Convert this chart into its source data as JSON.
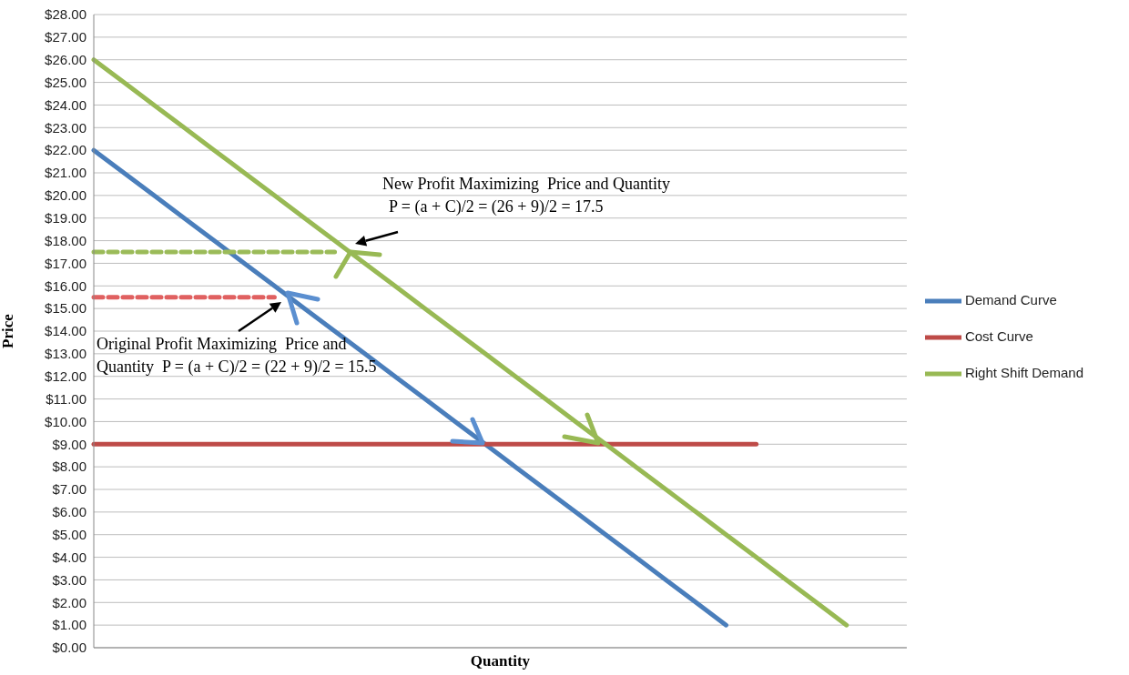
{
  "chart_data": {
    "type": "line",
    "xlabel": "Quantity",
    "ylabel": "Price",
    "categories": [
      null,
      null,
      null,
      null,
      null,
      null,
      null,
      null,
      null,
      null,
      null,
      null,
      null,
      null,
      null,
      null,
      null,
      null,
      null,
      null,
      null,
      null,
      null,
      null,
      null,
      null,
      null,
      null
    ],
    "ylim": [
      0,
      28
    ],
    "yticks": [
      {
        "value": 0,
        "label": "$0.00"
      },
      {
        "value": 1,
        "label": "$1.00"
      },
      {
        "value": 2,
        "label": "$2.00"
      },
      {
        "value": 3,
        "label": "$3.00"
      },
      {
        "value": 4,
        "label": "$4.00"
      },
      {
        "value": 5,
        "label": "$5.00"
      },
      {
        "value": 6,
        "label": "$6.00"
      },
      {
        "value": 7,
        "label": "$7.00"
      },
      {
        "value": 8,
        "label": "$8.00"
      },
      {
        "value": 9,
        "label": "$9.00"
      },
      {
        "value": 10,
        "label": "$10.00"
      },
      {
        "value": 11,
        "label": "$11.00"
      },
      {
        "value": 12,
        "label": "$12.00"
      },
      {
        "value": 13,
        "label": "$13.00"
      },
      {
        "value": 14,
        "label": "$14.00"
      },
      {
        "value": 15,
        "label": "$15.00"
      },
      {
        "value": 16,
        "label": "$16.00"
      },
      {
        "value": 17,
        "label": "$17.00"
      },
      {
        "value": 18,
        "label": "$18.00"
      },
      {
        "value": 19,
        "label": "$19.00"
      },
      {
        "value": 20,
        "label": "$20.00"
      },
      {
        "value": 21,
        "label": "$21.00"
      },
      {
        "value": 22,
        "label": "$22.00"
      },
      {
        "value": 23,
        "label": "$23.00"
      },
      {
        "value": 24,
        "label": "$24.00"
      },
      {
        "value": 25,
        "label": "$25.00"
      },
      {
        "value": 26,
        "label": "$26.00"
      },
      {
        "value": 27,
        "label": "$27.00"
      },
      {
        "value": 28,
        "label": "$28.00"
      }
    ],
    "grid": "y",
    "legend": "right",
    "marker": "none",
    "line_style": "solid",
    "series": [
      {
        "name": "Demand Curve",
        "color": "#4a7ebb",
        "values": [
          22,
          21,
          20,
          19,
          18,
          17,
          16,
          15,
          14,
          13,
          12,
          11,
          10,
          9,
          8,
          7,
          6,
          5,
          4,
          3,
          2,
          1,
          null,
          null,
          null,
          null,
          null,
          null
        ]
      },
      {
        "name": "Cost Curve",
        "color": "#be4b48",
        "values": [
          9,
          9,
          9,
          9,
          9,
          9,
          9,
          9,
          9,
          9,
          9,
          9,
          9,
          9,
          9,
          9,
          9,
          9,
          9,
          9,
          9,
          9,
          9,
          null,
          null,
          null,
          null,
          null
        ]
      },
      {
        "name": "Right Shift Demand",
        "color": "#98b954",
        "values": [
          26,
          25,
          24,
          23,
          22,
          21,
          20,
          19,
          18,
          17,
          16,
          15,
          14,
          13,
          12,
          11,
          10,
          9,
          8,
          7,
          6,
          5,
          4,
          3,
          2,
          1,
          null,
          null
        ]
      },
      {
        "color": "#9bbb59",
        "line_style": "dashed",
        "values": [
          17.5,
          17.5,
          17.5,
          17.5,
          17.5,
          17.5,
          17.5,
          17.5,
          17.5,
          null,
          null,
          null,
          null,
          null,
          null,
          null,
          null,
          null,
          null,
          null,
          null,
          null,
          null,
          null,
          null,
          null,
          null,
          null
        ]
      },
      {
        "color": "#e06060",
        "line_style": "dashed",
        "values": [
          15.5,
          15.5,
          15.5,
          15.5,
          15.5,
          15.5,
          15.5,
          null,
          null,
          null,
          null,
          null,
          null,
          null,
          null,
          null,
          null,
          null,
          null,
          null,
          null,
          null,
          null,
          null,
          null,
          null,
          null,
          null
        ]
      }
    ],
    "annotations": [
      "New Profit Maximizing  Price and Quantity",
      "P = (a + C)/2 = (26 + 9)/2 = 17.5",
      "Original Profit Maximizing  Price and",
      "Quantity  P = (a + C)/2 = (22 + 9)/2 = 15.5"
    ]
  }
}
